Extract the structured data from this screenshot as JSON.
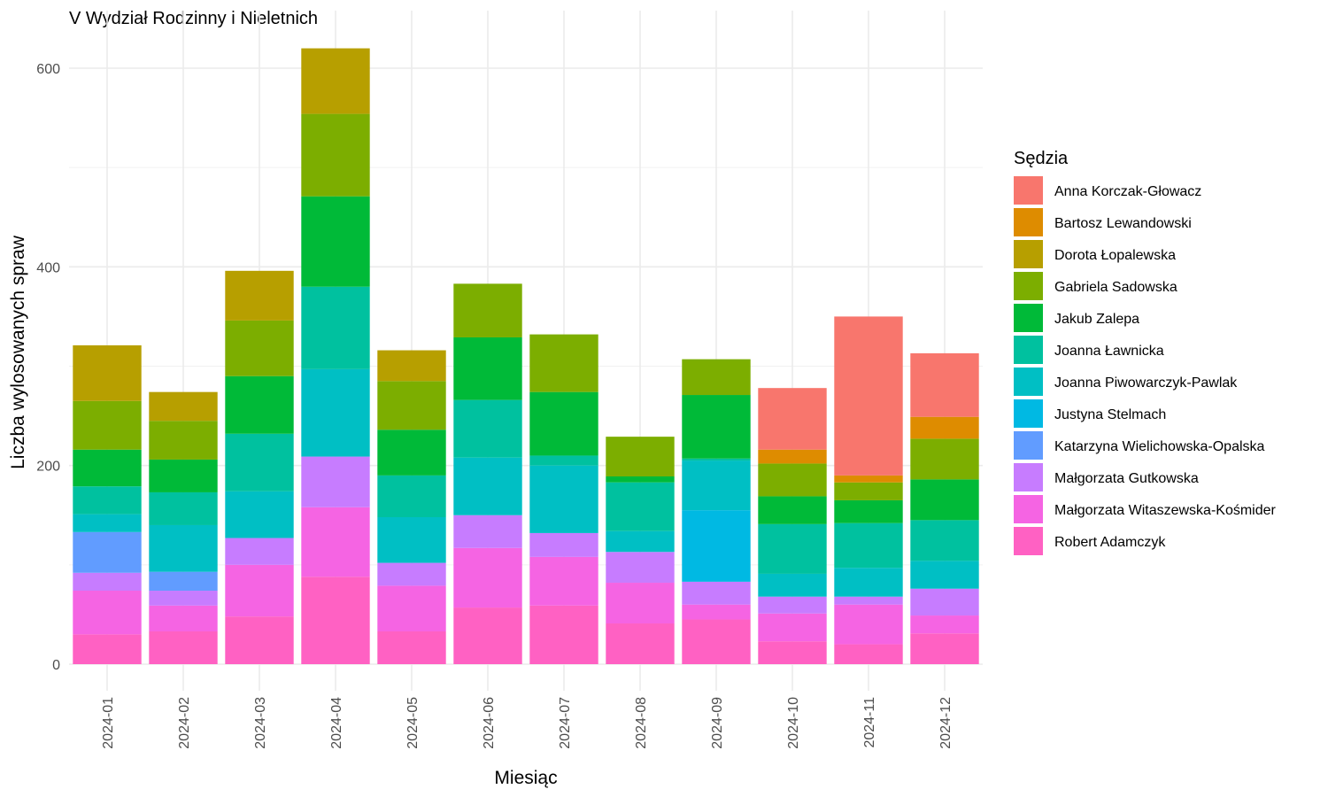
{
  "chart_data": {
    "type": "bar",
    "stacked": true,
    "title": "V Wydział Rodzinny i Nieletnich",
    "xlabel": "Miesiąc",
    "ylabel": "Liczba wylosowanych spraw",
    "ylim": [
      -25,
      655
    ],
    "yticks": [
      0,
      200,
      400,
      600
    ],
    "grid": true,
    "legend_title": "Sędzia",
    "legend_position": "right",
    "categories": [
      "2024-01",
      "2024-02",
      "2024-03",
      "2024-04",
      "2024-05",
      "2024-06",
      "2024-07",
      "2024-08",
      "2024-09",
      "2024-10",
      "2024-11",
      "2024-12"
    ],
    "series": [
      {
        "name": "Robert Adamczyk",
        "color": "#FF61C3",
        "values": [
          30,
          33,
          48,
          88,
          33,
          57,
          59,
          41,
          45,
          23,
          20,
          31
        ]
      },
      {
        "name": "Małgorzata Witaszewska-Kośmider",
        "color": "#F564E3",
        "values": [
          44,
          26,
          52,
          70,
          46,
          60,
          49,
          41,
          15,
          28,
          40,
          18
        ]
      },
      {
        "name": "Małgorzata Gutkowska",
        "color": "#C77CFF",
        "values": [
          18,
          15,
          27,
          51,
          23,
          33,
          24,
          31,
          23,
          17,
          8,
          27
        ]
      },
      {
        "name": "Katarzyna Wielichowska-Opalska",
        "color": "#619CFF",
        "values": [
          41,
          19,
          0,
          0,
          0,
          0,
          0,
          0,
          0,
          0,
          0,
          0
        ]
      },
      {
        "name": "Justyna Stelmach",
        "color": "#00B9E3",
        "values": [
          0,
          0,
          0,
          0,
          0,
          0,
          0,
          0,
          72,
          0,
          0,
          0
        ]
      },
      {
        "name": "Joanna Piwowarczyk-Pawlak",
        "color": "#00BFC4",
        "values": [
          18,
          47,
          47,
          88,
          46,
          58,
          68,
          21,
          50,
          23,
          29,
          28
        ]
      },
      {
        "name": "Joanna Ławnicka",
        "color": "#00C19F",
        "values": [
          28,
          33,
          58,
          83,
          42,
          58,
          10,
          49,
          2,
          50,
          45,
          41
        ]
      },
      {
        "name": "Jakub Zalepa",
        "color": "#00BA38",
        "values": [
          37,
          33,
          58,
          91,
          46,
          63,
          64,
          6,
          64,
          28,
          23,
          41
        ]
      },
      {
        "name": "Gabriela Sadowska",
        "color": "#7CAE00",
        "values": [
          49,
          39,
          56,
          83,
          49,
          54,
          58,
          40,
          36,
          33,
          18,
          41
        ]
      },
      {
        "name": "Dorota Łopalewska",
        "color": "#B79F00",
        "values": [
          56,
          29,
          50,
          66,
          31,
          0,
          0,
          0,
          0,
          0,
          0,
          0
        ]
      },
      {
        "name": "Bartosz Lewandowski",
        "color": "#DE8C00",
        "values": [
          0,
          0,
          0,
          0,
          0,
          0,
          0,
          0,
          0,
          14,
          7,
          22
        ]
      },
      {
        "name": "Anna Korczak-Głowacz",
        "color": "#F8766D",
        "values": [
          0,
          0,
          0,
          0,
          0,
          0,
          0,
          0,
          0,
          62,
          160,
          64
        ]
      }
    ]
  }
}
